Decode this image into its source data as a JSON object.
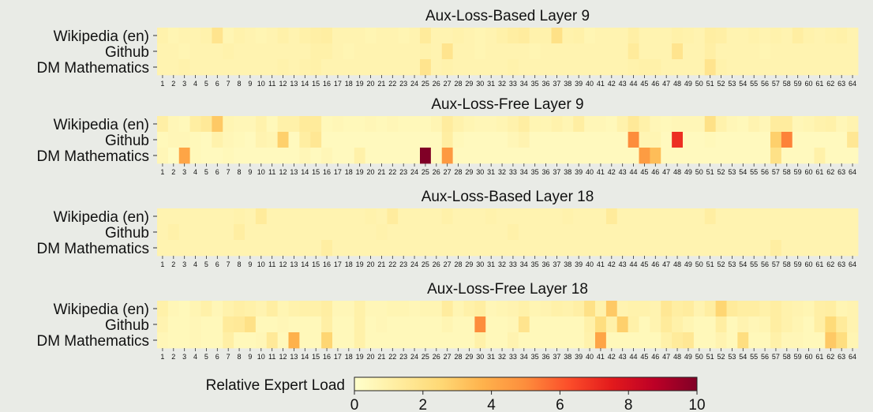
{
  "chart_data": [
    {
      "type": "heatmap",
      "title": "Aux-Loss-Based Layer 9",
      "rows": [
        "Wikipedia (en)",
        "Github",
        "DM Mathematics"
      ],
      "columns": [
        1,
        2,
        3,
        4,
        5,
        6,
        7,
        8,
        9,
        10,
        11,
        12,
        13,
        14,
        15,
        16,
        17,
        18,
        19,
        20,
        21,
        22,
        23,
        24,
        25,
        26,
        27,
        28,
        29,
        30,
        31,
        32,
        33,
        34,
        35,
        36,
        37,
        38,
        39,
        40,
        41,
        42,
        43,
        44,
        45,
        46,
        47,
        48,
        49,
        50,
        51,
        52,
        53,
        54,
        55,
        56,
        57,
        58,
        59,
        60,
        61,
        62,
        63,
        64
      ],
      "values": [
        [
          0.9,
          0.7,
          0.8,
          0.8,
          0.9,
          1.8,
          0.7,
          0.9,
          0.8,
          0.7,
          0.8,
          1.0,
          0.8,
          1.0,
          1.1,
          1.2,
          0.8,
          0.8,
          0.8,
          0.7,
          0.8,
          0.8,
          0.7,
          0.8,
          1.4,
          0.8,
          0.8,
          0.9,
          0.8,
          0.7,
          0.8,
          1.0,
          1.2,
          1.3,
          0.9,
          0.9,
          2.0,
          0.9,
          1.0,
          0.7,
          0.8,
          0.8,
          0.8,
          1.1,
          0.8,
          0.8,
          0.8,
          1.0,
          0.9,
          0.8,
          1.2,
          1.1,
          0.8,
          0.8,
          0.9,
          0.8,
          0.9,
          0.8,
          1.2,
          0.9,
          0.8,
          0.9,
          1.0,
          0.8
        ],
        [
          0.8,
          0.8,
          0.7,
          0.8,
          0.8,
          0.8,
          0.9,
          0.8,
          0.8,
          0.8,
          0.8,
          0.8,
          0.8,
          0.8,
          1.0,
          1.0,
          0.8,
          0.7,
          0.8,
          0.8,
          0.8,
          0.8,
          0.8,
          0.8,
          0.9,
          0.8,
          1.8,
          0.8,
          0.8,
          0.7,
          0.8,
          0.8,
          0.8,
          0.8,
          0.7,
          0.8,
          0.8,
          0.8,
          0.8,
          0.8,
          0.8,
          0.8,
          0.8,
          1.4,
          0.8,
          0.8,
          0.8,
          1.8,
          0.8,
          0.8,
          1.1,
          0.8,
          0.8,
          0.8,
          0.8,
          0.7,
          0.8,
          0.8,
          0.8,
          0.8,
          0.8,
          0.8,
          0.8,
          0.8
        ],
        [
          0.8,
          0.8,
          0.9,
          0.8,
          0.8,
          0.8,
          0.8,
          0.8,
          0.8,
          0.8,
          0.8,
          0.9,
          0.8,
          0.9,
          1.0,
          0.8,
          0.8,
          0.8,
          0.8,
          0.8,
          0.8,
          0.8,
          0.8,
          0.8,
          1.8,
          0.8,
          0.9,
          0.8,
          0.8,
          0.8,
          0.8,
          0.8,
          0.9,
          0.8,
          0.8,
          0.8,
          0.8,
          0.8,
          0.8,
          0.8,
          0.8,
          0.8,
          0.8,
          0.9,
          1.0,
          1.0,
          0.8,
          0.8,
          0.8,
          0.8,
          1.8,
          0.9,
          0.8,
          0.8,
          0.8,
          0.8,
          0.8,
          0.8,
          0.8,
          0.8,
          0.8,
          0.8,
          0.8,
          0.8
        ]
      ]
    },
    {
      "type": "heatmap",
      "title": "Aux-Loss-Free Layer 9",
      "rows": [
        "Wikipedia (en)",
        "Github",
        "DM Mathematics"
      ],
      "columns": [
        1,
        2,
        3,
        4,
        5,
        6,
        7,
        8,
        9,
        10,
        11,
        12,
        13,
        14,
        15,
        16,
        17,
        18,
        19,
        20,
        21,
        22,
        23,
        24,
        25,
        26,
        27,
        28,
        29,
        30,
        31,
        32,
        33,
        34,
        35,
        36,
        37,
        38,
        39,
        40,
        41,
        42,
        43,
        44,
        45,
        46,
        47,
        48,
        49,
        50,
        51,
        52,
        53,
        54,
        55,
        56,
        57,
        58,
        59,
        60,
        61,
        62,
        63,
        64
      ],
      "values": [
        [
          1.1,
          0.6,
          0.5,
          1.2,
          1.5,
          3.0,
          0.7,
          0.6,
          0.6,
          0.9,
          0.5,
          1.0,
          1.0,
          1.4,
          1.4,
          0.5,
          0.6,
          0.5,
          0.5,
          0.6,
          0.5,
          0.6,
          0.5,
          0.5,
          0.5,
          0.7,
          1.3,
          0.9,
          0.7,
          0.6,
          0.6,
          0.7,
          0.9,
          1.2,
          0.7,
          0.7,
          0.9,
          0.7,
          1.2,
          0.6,
          0.6,
          0.5,
          0.9,
          1.5,
          1.0,
          0.6,
          0.5,
          0.6,
          0.6,
          0.6,
          2.0,
          0.9,
          0.6,
          0.5,
          0.8,
          0.6,
          1.3,
          1.3,
          0.6,
          0.7,
          0.9,
          1.0,
          0.6,
          0.8
        ],
        [
          0.5,
          0.6,
          0.6,
          0.5,
          0.4,
          0.9,
          0.6,
          0.5,
          0.4,
          0.8,
          0.7,
          2.8,
          0.4,
          1.2,
          1.6,
          0.4,
          0.4,
          0.4,
          0.4,
          0.4,
          0.4,
          0.4,
          0.4,
          0.4,
          0.4,
          0.4,
          1.2,
          0.5,
          0.4,
          0.4,
          0.4,
          0.4,
          0.6,
          0.8,
          0.4,
          0.4,
          0.4,
          0.4,
          0.4,
          0.4,
          0.4,
          0.4,
          0.4,
          5.0,
          0.7,
          0.7,
          0.4,
          7.0,
          0.4,
          0.4,
          0.5,
          0.4,
          0.4,
          0.4,
          0.4,
          0.4,
          2.8,
          5.2,
          0.4,
          0.4,
          0.4,
          0.4,
          0.4,
          1.6
        ],
        [
          0.6,
          0.3,
          4.2,
          0.5,
          0.4,
          0.4,
          0.5,
          0.4,
          0.4,
          0.4,
          0.4,
          0.4,
          0.4,
          0.6,
          0.4,
          0.6,
          0.4,
          0.4,
          1.0,
          0.4,
          0.4,
          0.4,
          0.4,
          0.4,
          10.0,
          0.4,
          4.6,
          0.4,
          0.4,
          0.4,
          0.4,
          0.4,
          0.4,
          0.4,
          0.4,
          0.4,
          0.4,
          0.4,
          0.4,
          0.4,
          0.4,
          0.4,
          0.4,
          0.4,
          4.5,
          3.4,
          0.4,
          0.4,
          0.4,
          0.4,
          0.4,
          0.4,
          0.4,
          0.4,
          0.4,
          0.4,
          2.0,
          0.4,
          0.4,
          0.4,
          1.0,
          0.4,
          0.4,
          0.4
        ]
      ]
    },
    {
      "type": "heatmap",
      "title": "Aux-Loss-Based Layer 18",
      "rows": [
        "Wikipedia (en)",
        "Github",
        "DM Mathematics"
      ],
      "columns": [
        1,
        2,
        3,
        4,
        5,
        6,
        7,
        8,
        9,
        10,
        11,
        12,
        13,
        14,
        15,
        16,
        17,
        18,
        19,
        20,
        21,
        22,
        23,
        24,
        25,
        26,
        27,
        28,
        29,
        30,
        31,
        32,
        33,
        34,
        35,
        36,
        37,
        38,
        39,
        40,
        41,
        42,
        43,
        44,
        45,
        46,
        47,
        48,
        49,
        50,
        51,
        52,
        53,
        54,
        55,
        56,
        57,
        58,
        59,
        60,
        61,
        62,
        63,
        64
      ],
      "values": [
        [
          0.8,
          0.8,
          0.8,
          0.8,
          0.8,
          0.8,
          0.8,
          0.9,
          0.8,
          1.4,
          0.8,
          0.8,
          0.8,
          0.8,
          0.8,
          0.8,
          0.8,
          0.8,
          0.8,
          0.9,
          0.8,
          1.3,
          0.8,
          0.8,
          0.8,
          0.8,
          1.0,
          0.8,
          0.8,
          0.8,
          0.9,
          0.8,
          0.8,
          0.8,
          0.8,
          0.8,
          0.8,
          0.9,
          0.8,
          0.8,
          0.8,
          1.4,
          0.8,
          0.8,
          0.8,
          0.8,
          0.8,
          0.8,
          0.8,
          0.8,
          1.2,
          0.8,
          0.8,
          0.8,
          0.8,
          0.8,
          0.8,
          0.8,
          0.8,
          0.8,
          0.8,
          0.8,
          0.8,
          0.8
        ],
        [
          0.8,
          1.0,
          0.8,
          0.8,
          0.8,
          0.8,
          0.8,
          1.2,
          0.8,
          0.8,
          0.8,
          0.8,
          0.8,
          0.8,
          0.8,
          0.8,
          0.8,
          0.8,
          0.8,
          0.8,
          0.9,
          0.8,
          0.8,
          0.8,
          0.8,
          0.8,
          0.8,
          0.8,
          0.8,
          0.8,
          0.8,
          0.8,
          1.0,
          0.8,
          0.8,
          0.8,
          0.8,
          0.8,
          0.8,
          0.8,
          0.8,
          0.8,
          0.8,
          0.8,
          0.8,
          0.8,
          0.8,
          0.8,
          0.8,
          0.8,
          0.8,
          0.8,
          0.8,
          0.8,
          0.8,
          0.8,
          0.8,
          0.8,
          0.8,
          0.8,
          0.8,
          0.8,
          0.8,
          0.8
        ],
        [
          0.8,
          0.8,
          0.8,
          0.8,
          0.8,
          0.8,
          0.8,
          0.8,
          0.8,
          0.8,
          0.8,
          0.8,
          0.8,
          0.8,
          0.8,
          1.2,
          0.8,
          0.8,
          0.8,
          0.8,
          0.8,
          0.8,
          0.8,
          0.8,
          0.8,
          0.8,
          0.8,
          0.8,
          0.8,
          0.8,
          0.8,
          0.8,
          0.8,
          0.8,
          0.8,
          0.8,
          0.8,
          0.8,
          0.8,
          0.8,
          0.8,
          0.8,
          0.8,
          0.8,
          0.8,
          0.8,
          0.8,
          0.8,
          0.8,
          0.8,
          0.8,
          0.8,
          0.8,
          0.8,
          0.8,
          0.8,
          1.2,
          0.8,
          0.8,
          0.8,
          0.8,
          0.8,
          0.8,
          0.8
        ]
      ]
    },
    {
      "type": "heatmap",
      "title": "Aux-Loss-Free Layer 18",
      "rows": [
        "Wikipedia (en)",
        "Github",
        "DM Mathematics"
      ],
      "columns": [
        1,
        2,
        3,
        4,
        5,
        6,
        7,
        8,
        9,
        10,
        11,
        12,
        13,
        14,
        15,
        16,
        17,
        18,
        19,
        20,
        21,
        22,
        23,
        24,
        25,
        26,
        27,
        28,
        29,
        30,
        31,
        32,
        33,
        34,
        35,
        36,
        37,
        38,
        39,
        40,
        41,
        42,
        43,
        44,
        45,
        46,
        47,
        48,
        49,
        50,
        51,
        52,
        53,
        54,
        55,
        56,
        57,
        58,
        59,
        60,
        61,
        62,
        63,
        64
      ],
      "values": [
        [
          1.0,
          0.6,
          0.5,
          0.7,
          1.0,
          0.6,
          0.9,
          1.1,
          1.0,
          0.8,
          1.2,
          0.7,
          0.9,
          1.0,
          1.0,
          1.2,
          0.6,
          0.6,
          1.0,
          0.6,
          0.6,
          0.7,
          0.7,
          0.6,
          0.7,
          0.7,
          1.3,
          0.7,
          1.0,
          1.2,
          0.6,
          0.7,
          0.8,
          1.0,
          0.7,
          0.8,
          1.0,
          0.9,
          1.1,
          2.0,
          0.9,
          3.0,
          0.8,
          0.9,
          0.9,
          0.8,
          1.6,
          1.2,
          1.3,
          0.8,
          1.2,
          2.6,
          1.4,
          1.2,
          1.2,
          1.0,
          1.2,
          0.9,
          0.8,
          0.7,
          1.1,
          1.2,
          0.7,
          0.8
        ],
        [
          0.8,
          0.5,
          0.5,
          0.6,
          0.5,
          0.5,
          1.4,
          1.5,
          2.0,
          0.5,
          0.5,
          0.6,
          0.5,
          0.5,
          0.5,
          1.1,
          0.5,
          0.5,
          1.0,
          0.5,
          0.6,
          0.5,
          0.5,
          0.5,
          0.5,
          0.5,
          0.7,
          0.5,
          0.5,
          5.0,
          0.5,
          0.5,
          0.6,
          1.8,
          0.5,
          0.5,
          0.5,
          0.5,
          0.5,
          1.0,
          2.2,
          1.0,
          2.8,
          1.0,
          0.5,
          0.8,
          1.4,
          1.0,
          0.7,
          0.5,
          0.5,
          1.2,
          0.5,
          0.8,
          0.6,
          0.7,
          1.2,
          0.9,
          0.7,
          0.5,
          1.1,
          2.4,
          1.4,
          0.8
        ],
        [
          0.6,
          0.5,
          0.5,
          0.6,
          0.5,
          0.5,
          1.1,
          0.5,
          0.5,
          0.6,
          1.5,
          0.5,
          3.8,
          0.5,
          0.5,
          2.6,
          0.5,
          0.5,
          1.0,
          0.5,
          0.5,
          0.5,
          0.5,
          0.5,
          0.5,
          0.5,
          0.5,
          0.5,
          0.5,
          1.0,
          0.5,
          0.5,
          0.8,
          0.5,
          0.5,
          0.5,
          0.5,
          0.5,
          0.5,
          0.9,
          4.2,
          0.5,
          0.5,
          0.5,
          0.5,
          0.5,
          1.0,
          1.4,
          1.6,
          0.5,
          0.5,
          0.8,
          0.5,
          2.2,
          0.5,
          0.5,
          1.0,
          0.6,
          0.6,
          0.5,
          0.5,
          3.0,
          2.2,
          0.7
        ]
      ]
    }
  ],
  "colorbar": {
    "label": "Relative Expert Load",
    "ticks": [
      0,
      2,
      4,
      6,
      8,
      10
    ],
    "vmin": 0,
    "vmax": 10,
    "colormap": "YlOrRd",
    "colors": [
      "#ffffcc",
      "#ffeda0",
      "#fed976",
      "#feb24c",
      "#fd8d3c",
      "#fc4e2a",
      "#e31a1c",
      "#bd0026",
      "#800026"
    ]
  },
  "background_color": "#e9ebe6"
}
